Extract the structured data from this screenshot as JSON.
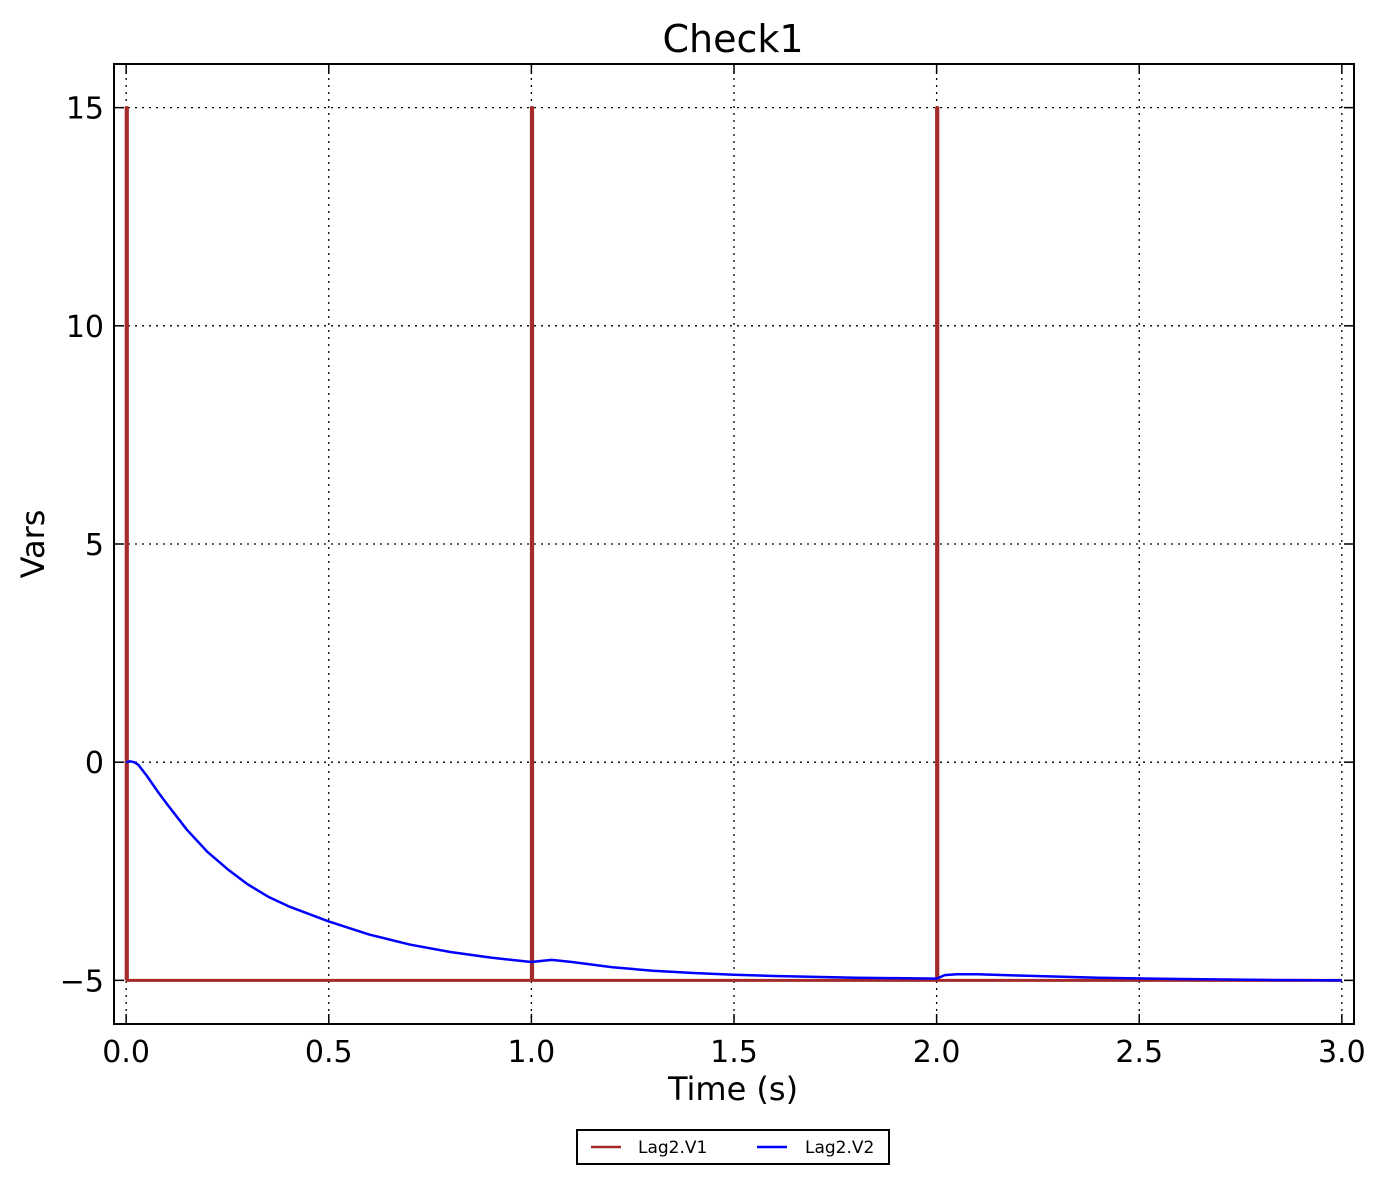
{
  "chart_data": {
    "type": "line",
    "title": "Check1",
    "xlabel": "Time (s)",
    "ylabel": "Vars",
    "xlim": [
      -0.03,
      3.03
    ],
    "ylim": [
      -6,
      16
    ],
    "xticks": [
      0.0,
      0.5,
      1.0,
      1.5,
      2.0,
      2.5,
      3.0
    ],
    "xtick_labels": [
      "0.0",
      "0.5",
      "1.0",
      "1.5",
      "2.0",
      "2.5",
      "3.0"
    ],
    "yticks": [
      -5,
      0,
      5,
      10,
      15
    ],
    "ytick_labels": [
      "−5",
      "0",
      "5",
      "10",
      "15"
    ],
    "grid": true,
    "legend_position": "bottom-center, below axes",
    "series": [
      {
        "name": "Lag2.V1",
        "color": "#a52a2a",
        "x": [
          0.0,
          0.0,
          0.003,
          0.003,
          1.0,
          1.0,
          1.003,
          1.003,
          2.0,
          2.0,
          2.003,
          2.003,
          3.0
        ],
        "y": [
          -5,
          15,
          15,
          -5,
          -5,
          15,
          15,
          -5,
          -5,
          15,
          15,
          -5,
          -5
        ]
      },
      {
        "name": "Lag2.V2",
        "color": "#0000ff",
        "x": [
          0.0,
          0.01,
          0.02,
          0.03,
          0.05,
          0.08,
          0.1,
          0.15,
          0.2,
          0.25,
          0.3,
          0.35,
          0.4,
          0.5,
          0.6,
          0.7,
          0.8,
          0.9,
          1.0,
          1.02,
          1.05,
          1.1,
          1.2,
          1.3,
          1.4,
          1.5,
          1.6,
          1.7,
          1.8,
          1.9,
          2.0,
          2.02,
          2.05,
          2.1,
          2.2,
          2.4,
          2.6,
          2.8,
          3.0
        ],
        "y": [
          0.0,
          0.02,
          0.0,
          -0.06,
          -0.3,
          -0.7,
          -0.95,
          -1.55,
          -2.05,
          -2.45,
          -2.8,
          -3.08,
          -3.3,
          -3.65,
          -3.95,
          -4.18,
          -4.35,
          -4.48,
          -4.58,
          -4.56,
          -4.53,
          -4.58,
          -4.7,
          -4.78,
          -4.83,
          -4.87,
          -4.9,
          -4.92,
          -4.94,
          -4.95,
          -4.96,
          -4.88,
          -4.86,
          -4.86,
          -4.89,
          -4.94,
          -4.97,
          -4.99,
          -5.0
        ]
      }
    ]
  }
}
